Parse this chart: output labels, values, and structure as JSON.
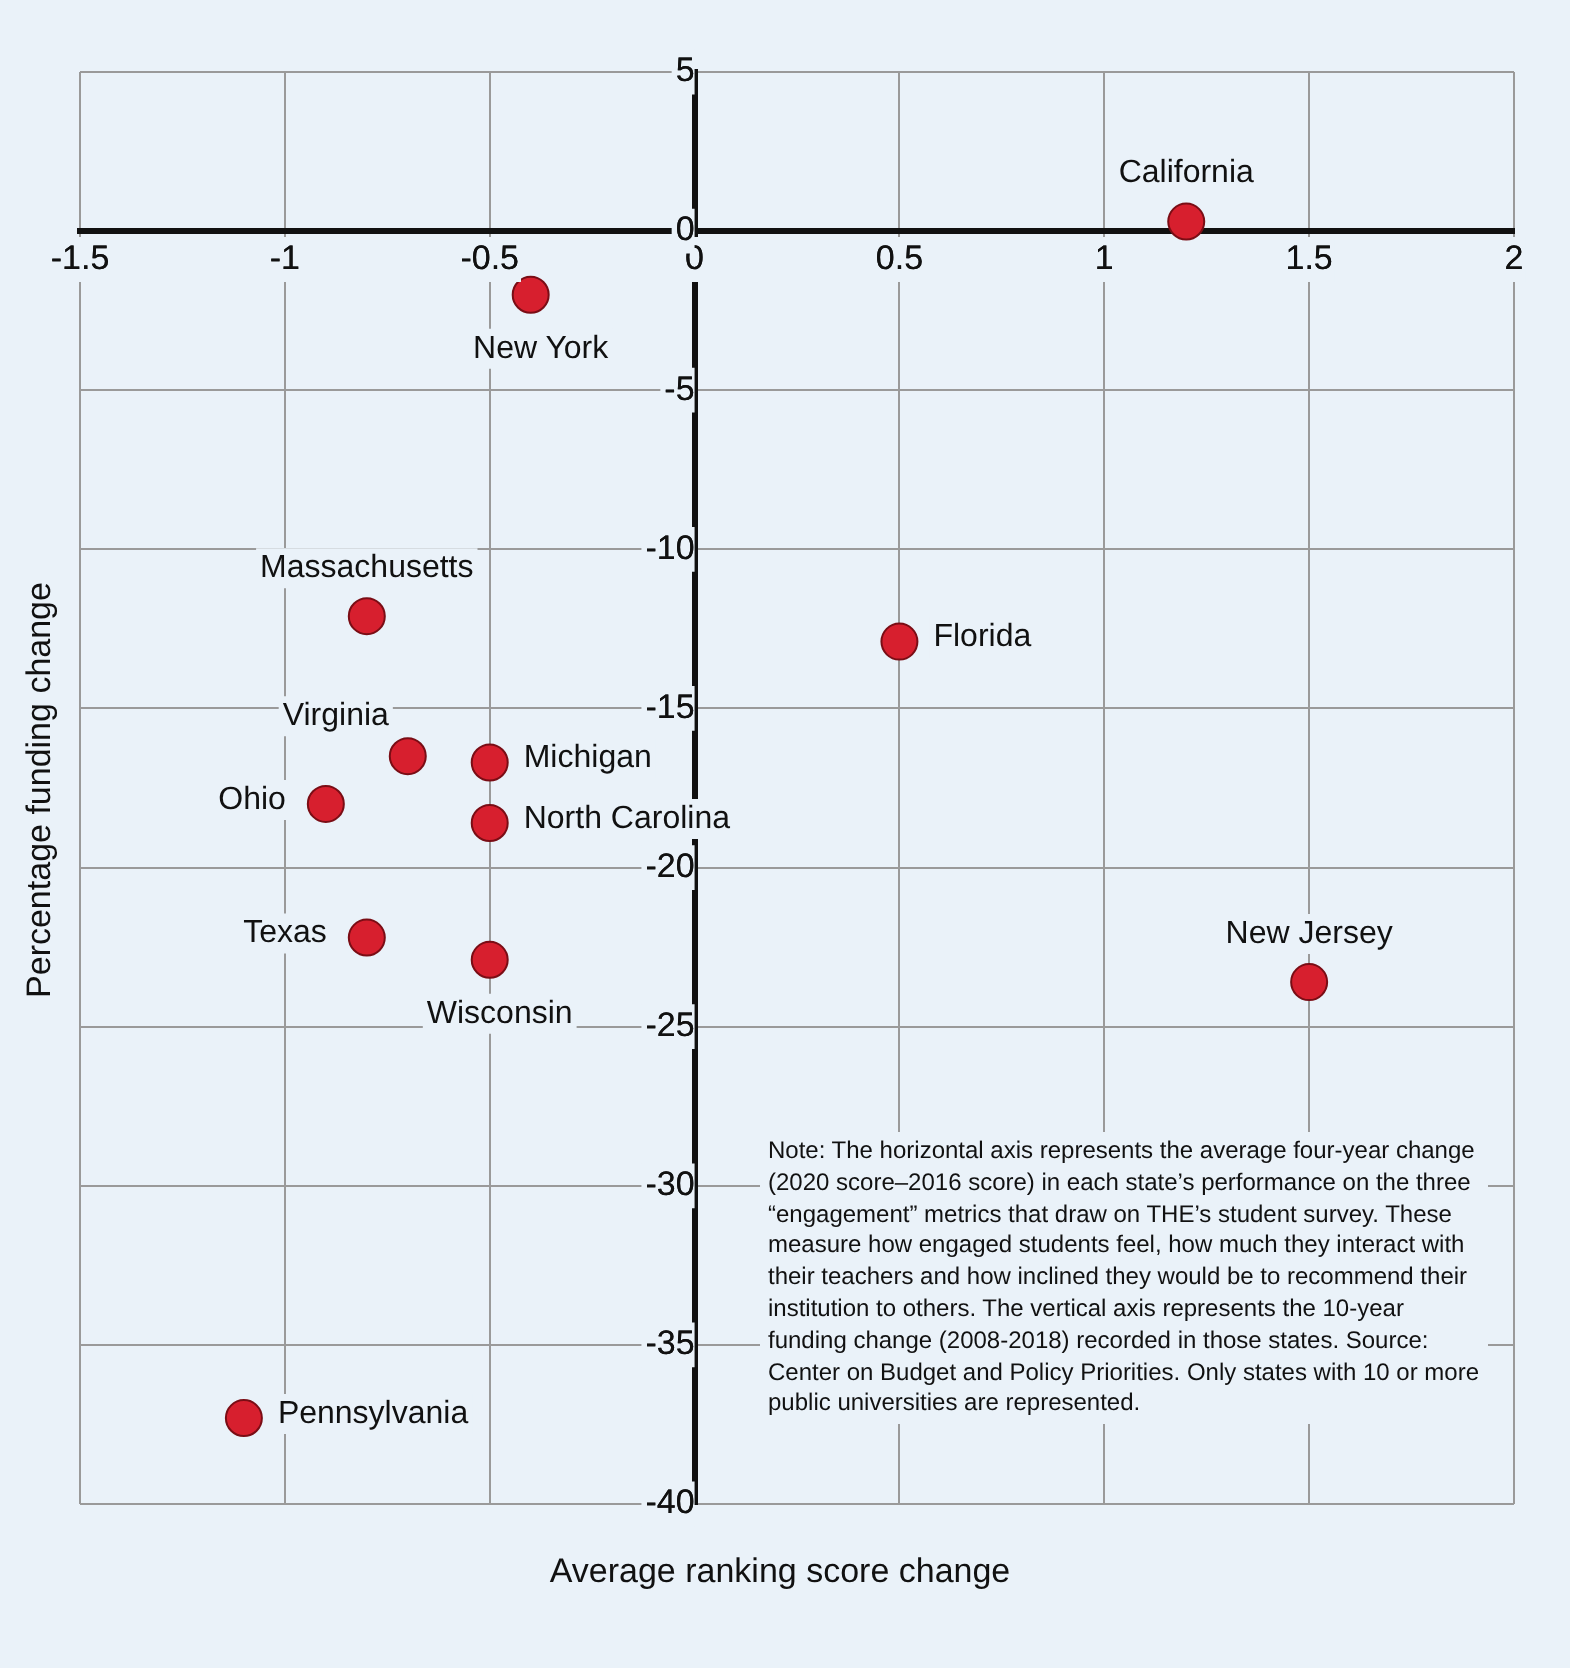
{
  "chart_data": {
    "type": "scatter",
    "xlabel": "Average ranking score change",
    "ylabel": "Percentage funding change",
    "x": [
      1.2,
      -0.4,
      -0.8,
      0.5,
      -0.7,
      -0.5,
      -0.9,
      -0.5,
      -0.8,
      -0.5,
      1.5,
      -1.1
    ],
    "series": [
      {
        "color": "#d71f2e",
        "values": [
          0.3,
          -2.0,
          -12.1,
          -12.9,
          -16.5,
          -16.7,
          -18.0,
          -18.6,
          -22.2,
          -22.9,
          -23.6,
          -37.3
        ]
      }
    ],
    "xlim": [
      -1.5,
      2
    ],
    "xticks": [
      -1.5,
      -1,
      -0.5,
      0,
      0.5,
      1,
      1.5,
      2
    ],
    "ylim": [
      -40,
      5
    ],
    "yticks": [
      5,
      0,
      -5,
      -10,
      -15,
      -20,
      -25,
      -30,
      -35,
      -40
    ],
    "grid": true,
    "marker": "circle",
    "legend": false,
    "annotations": [
      {
        "text": "California",
        "x": 1.2,
        "y": 0.3
      },
      {
        "text": "New York",
        "x": -0.4,
        "y": -2.0
      },
      {
        "text": "Massachusetts",
        "x": -0.8,
        "y": -12.1
      },
      {
        "text": "Florida",
        "x": 0.5,
        "y": -12.9
      },
      {
        "text": "Virginia",
        "x": -0.7,
        "y": -16.5
      },
      {
        "text": "Michigan",
        "x": -0.5,
        "y": -16.7
      },
      {
        "text": "Ohio",
        "x": -0.9,
        "y": -18.0
      },
      {
        "text": "North Carolina",
        "x": -0.5,
        "y": -18.6
      },
      {
        "text": "Texas",
        "x": -0.8,
        "y": -22.2
      },
      {
        "text": "Wisconsin",
        "x": -0.5,
        "y": -22.9
      },
      {
        "text": "New Jersey",
        "x": 1.5,
        "y": -23.6
      },
      {
        "text": "Pennsylvania",
        "x": -1.1,
        "y": -37.3
      },
      "Note: The horizontal axis represents the average four-year change (2020 score–2016 score) in each state’s performance on the three “engagement” metrics that draw on THE’s student survey. These measure how engaged students feel, how much they interact with their teachers and how inclined they would be to recommend their institution to others. The vertical axis represents the 10-year funding change (2008-2018) recorded in those states. Source: Center on Budget and Policy Priorities. Only states with 10 or more public universities are represented."
    ]
  }
}
